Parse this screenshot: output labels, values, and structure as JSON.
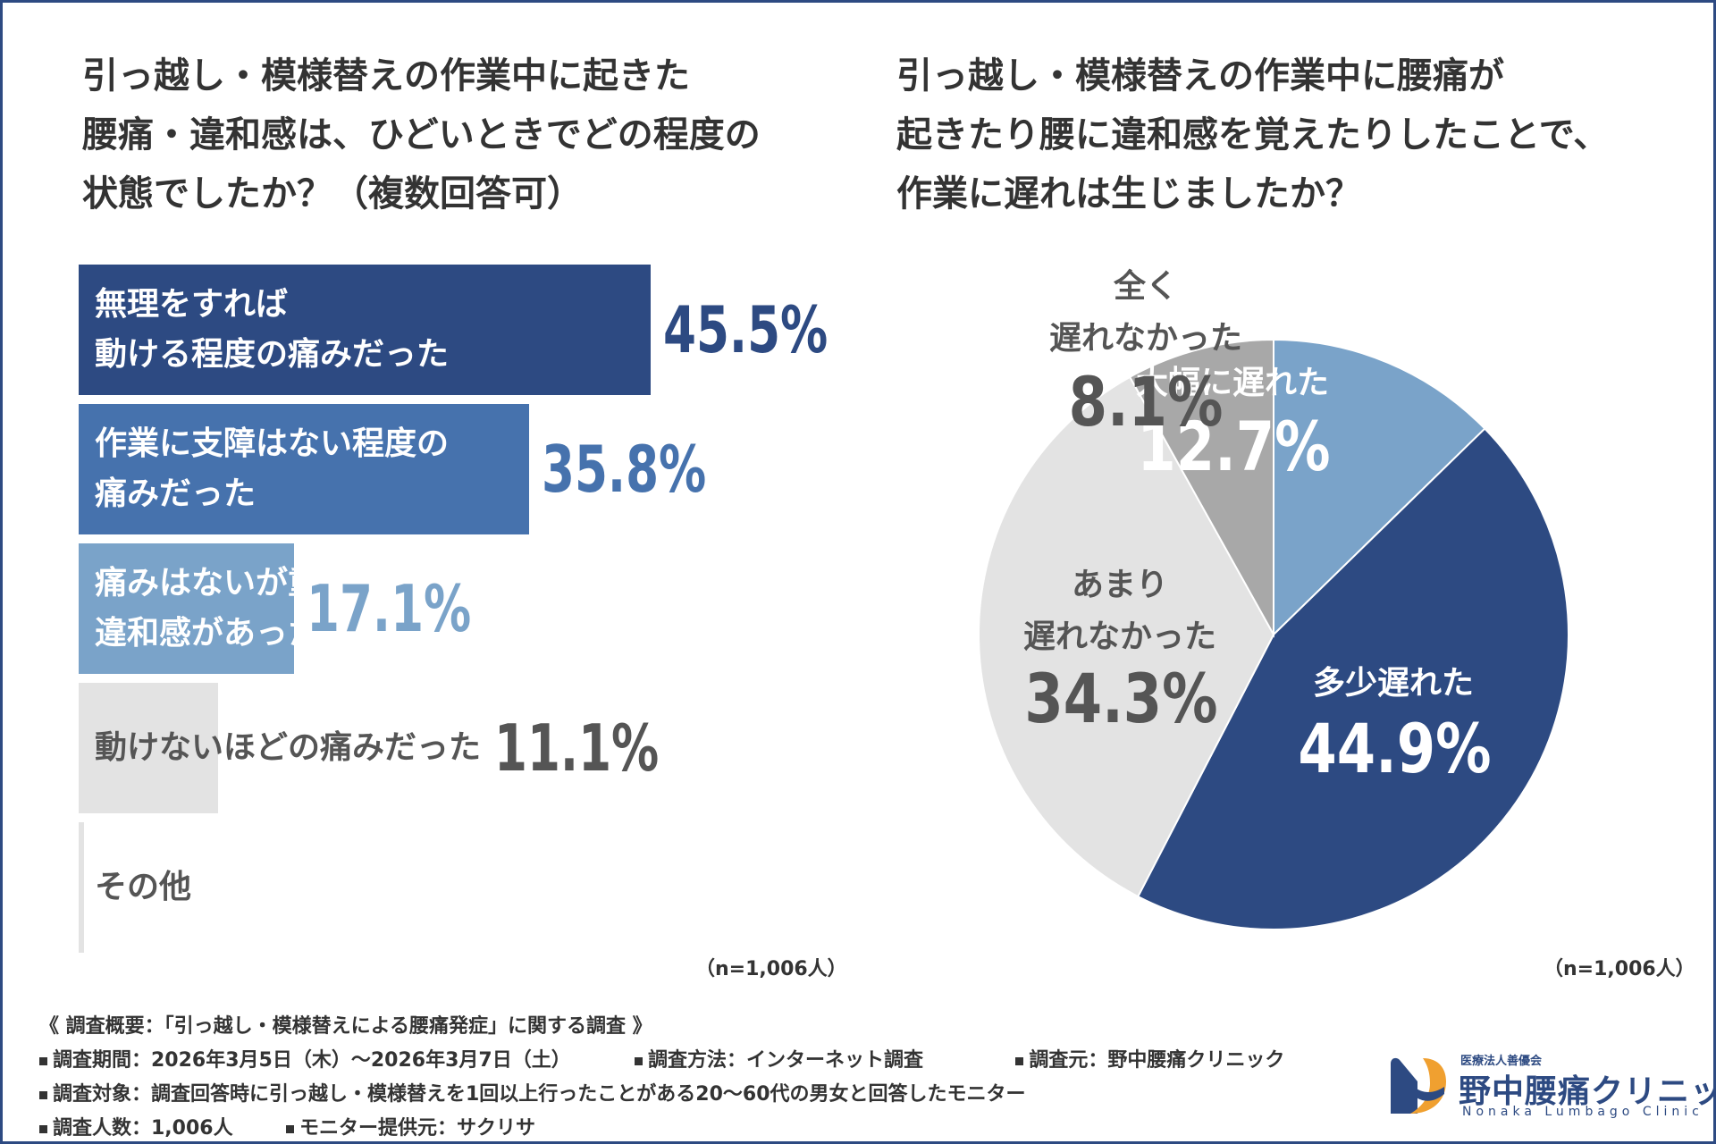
{
  "left_chart": {
    "title_lines": [
      "引っ越し・模様替えの作業中に起きた",
      "腰痛・違和感は、ひどいときでどの程度の",
      "状態でしたか？（複数回答可）"
    ],
    "n_label": "（n=1,006人）"
  },
  "right_chart": {
    "title_lines": [
      "引っ越し・模様替えの作業中に腰痛が",
      "起きたり腰に違和感を覚えたりしたことで、",
      "作業に遅れは生じましたか？"
    ],
    "n_label": "（n=1,006人）"
  },
  "chart_data": [
    {
      "type": "bar",
      "orientation": "horizontal",
      "title": "引っ越し・模様替えの作業中に起きた腰痛・違和感は、ひどいときでどの程度の状態でしたか？（複数回答可）",
      "categories": [
        "無理をすれば 動ける程度の痛みだった",
        "作業に支障はない程度の 痛みだった",
        "痛みはないが重だるさや 違和感があった",
        "動けないほどの痛みだった",
        "その他"
      ],
      "category_lines": [
        [
          "無理をすれば",
          "動ける程度の痛みだった"
        ],
        [
          "作業に支障はない程度の",
          "痛みだった"
        ],
        [
          "痛みはないが重だるさや",
          "違和感があった"
        ],
        [
          "動けないほどの痛みだった"
        ],
        [
          "その他"
        ]
      ],
      "values": [
        45.5,
        35.8,
        17.1,
        11.1,
        0.4
      ],
      "value_labels": [
        "45.5%",
        "35.8%",
        "17.1%",
        "11.1%",
        ""
      ],
      "colors": [
        "#2d4a82",
        "#4672ad",
        "#7aa3c9",
        "#e3e3e3",
        "#e3e3e3"
      ],
      "value_colors": [
        "#2d4a82",
        "#4672ad",
        "#7aa3c9",
        "#555555",
        "#555555"
      ],
      "label_colors": [
        "#ffffff",
        "#ffffff",
        "#ffffff",
        "#555555",
        "#555555"
      ],
      "unit": "%",
      "n": "n=1,006人"
    },
    {
      "type": "pie",
      "title": "引っ越し・模様替えの作業中に腰痛が起きたり腰に違和感を覚えたりしたことで、作業に遅れは生じましたか？",
      "labels": [
        "大幅に遅れた",
        "多少遅れた",
        "あまり 遅れなかった",
        "全く 遅れなかった"
      ],
      "label_lines": [
        [
          "大幅に遅れた"
        ],
        [
          "多少遅れた"
        ],
        [
          "あまり",
          "遅れなかった"
        ],
        [
          "全く",
          "遅れなかった"
        ]
      ],
      "values": [
        12.7,
        44.9,
        34.3,
        8.1
      ],
      "value_labels": [
        "12.7%",
        "44.9%",
        "34.3%",
        "8.1%"
      ],
      "colors": [
        "#7aa3c9",
        "#2d4a82",
        "#e3e3e3",
        "#a8a8a8"
      ],
      "text_colors": [
        "#ffffff",
        "#ffffff",
        "#555555",
        "#555555"
      ],
      "start_angle": "12 o'clock, clockwise",
      "n": "n=1,006人"
    }
  ],
  "footer": {
    "heading": "《 調査概要：「引っ越し・模様替えによる腰痛発症」に関する調査 》",
    "period": "調査期間：2026年3月5日（木）〜2026年3月7日（土）",
    "method": "調査方法：インターネット調査",
    "source": "調査元：野中腰痛クリニック",
    "target": "調査対象：調査回答時に引っ越し・模様替えを1回以上行ったことがある20〜60代の男女と回答したモニター",
    "count": "調査人数：1,006人",
    "provider": "モニター提供元：サクリサ"
  },
  "logo": {
    "small": "医療法人善優会",
    "name": "野中腰痛クリニック",
    "english": "Nonaka Lumbago Clinic",
    "colors": {
      "blue": "#2d4a82",
      "orange": "#f0a030"
    }
  }
}
